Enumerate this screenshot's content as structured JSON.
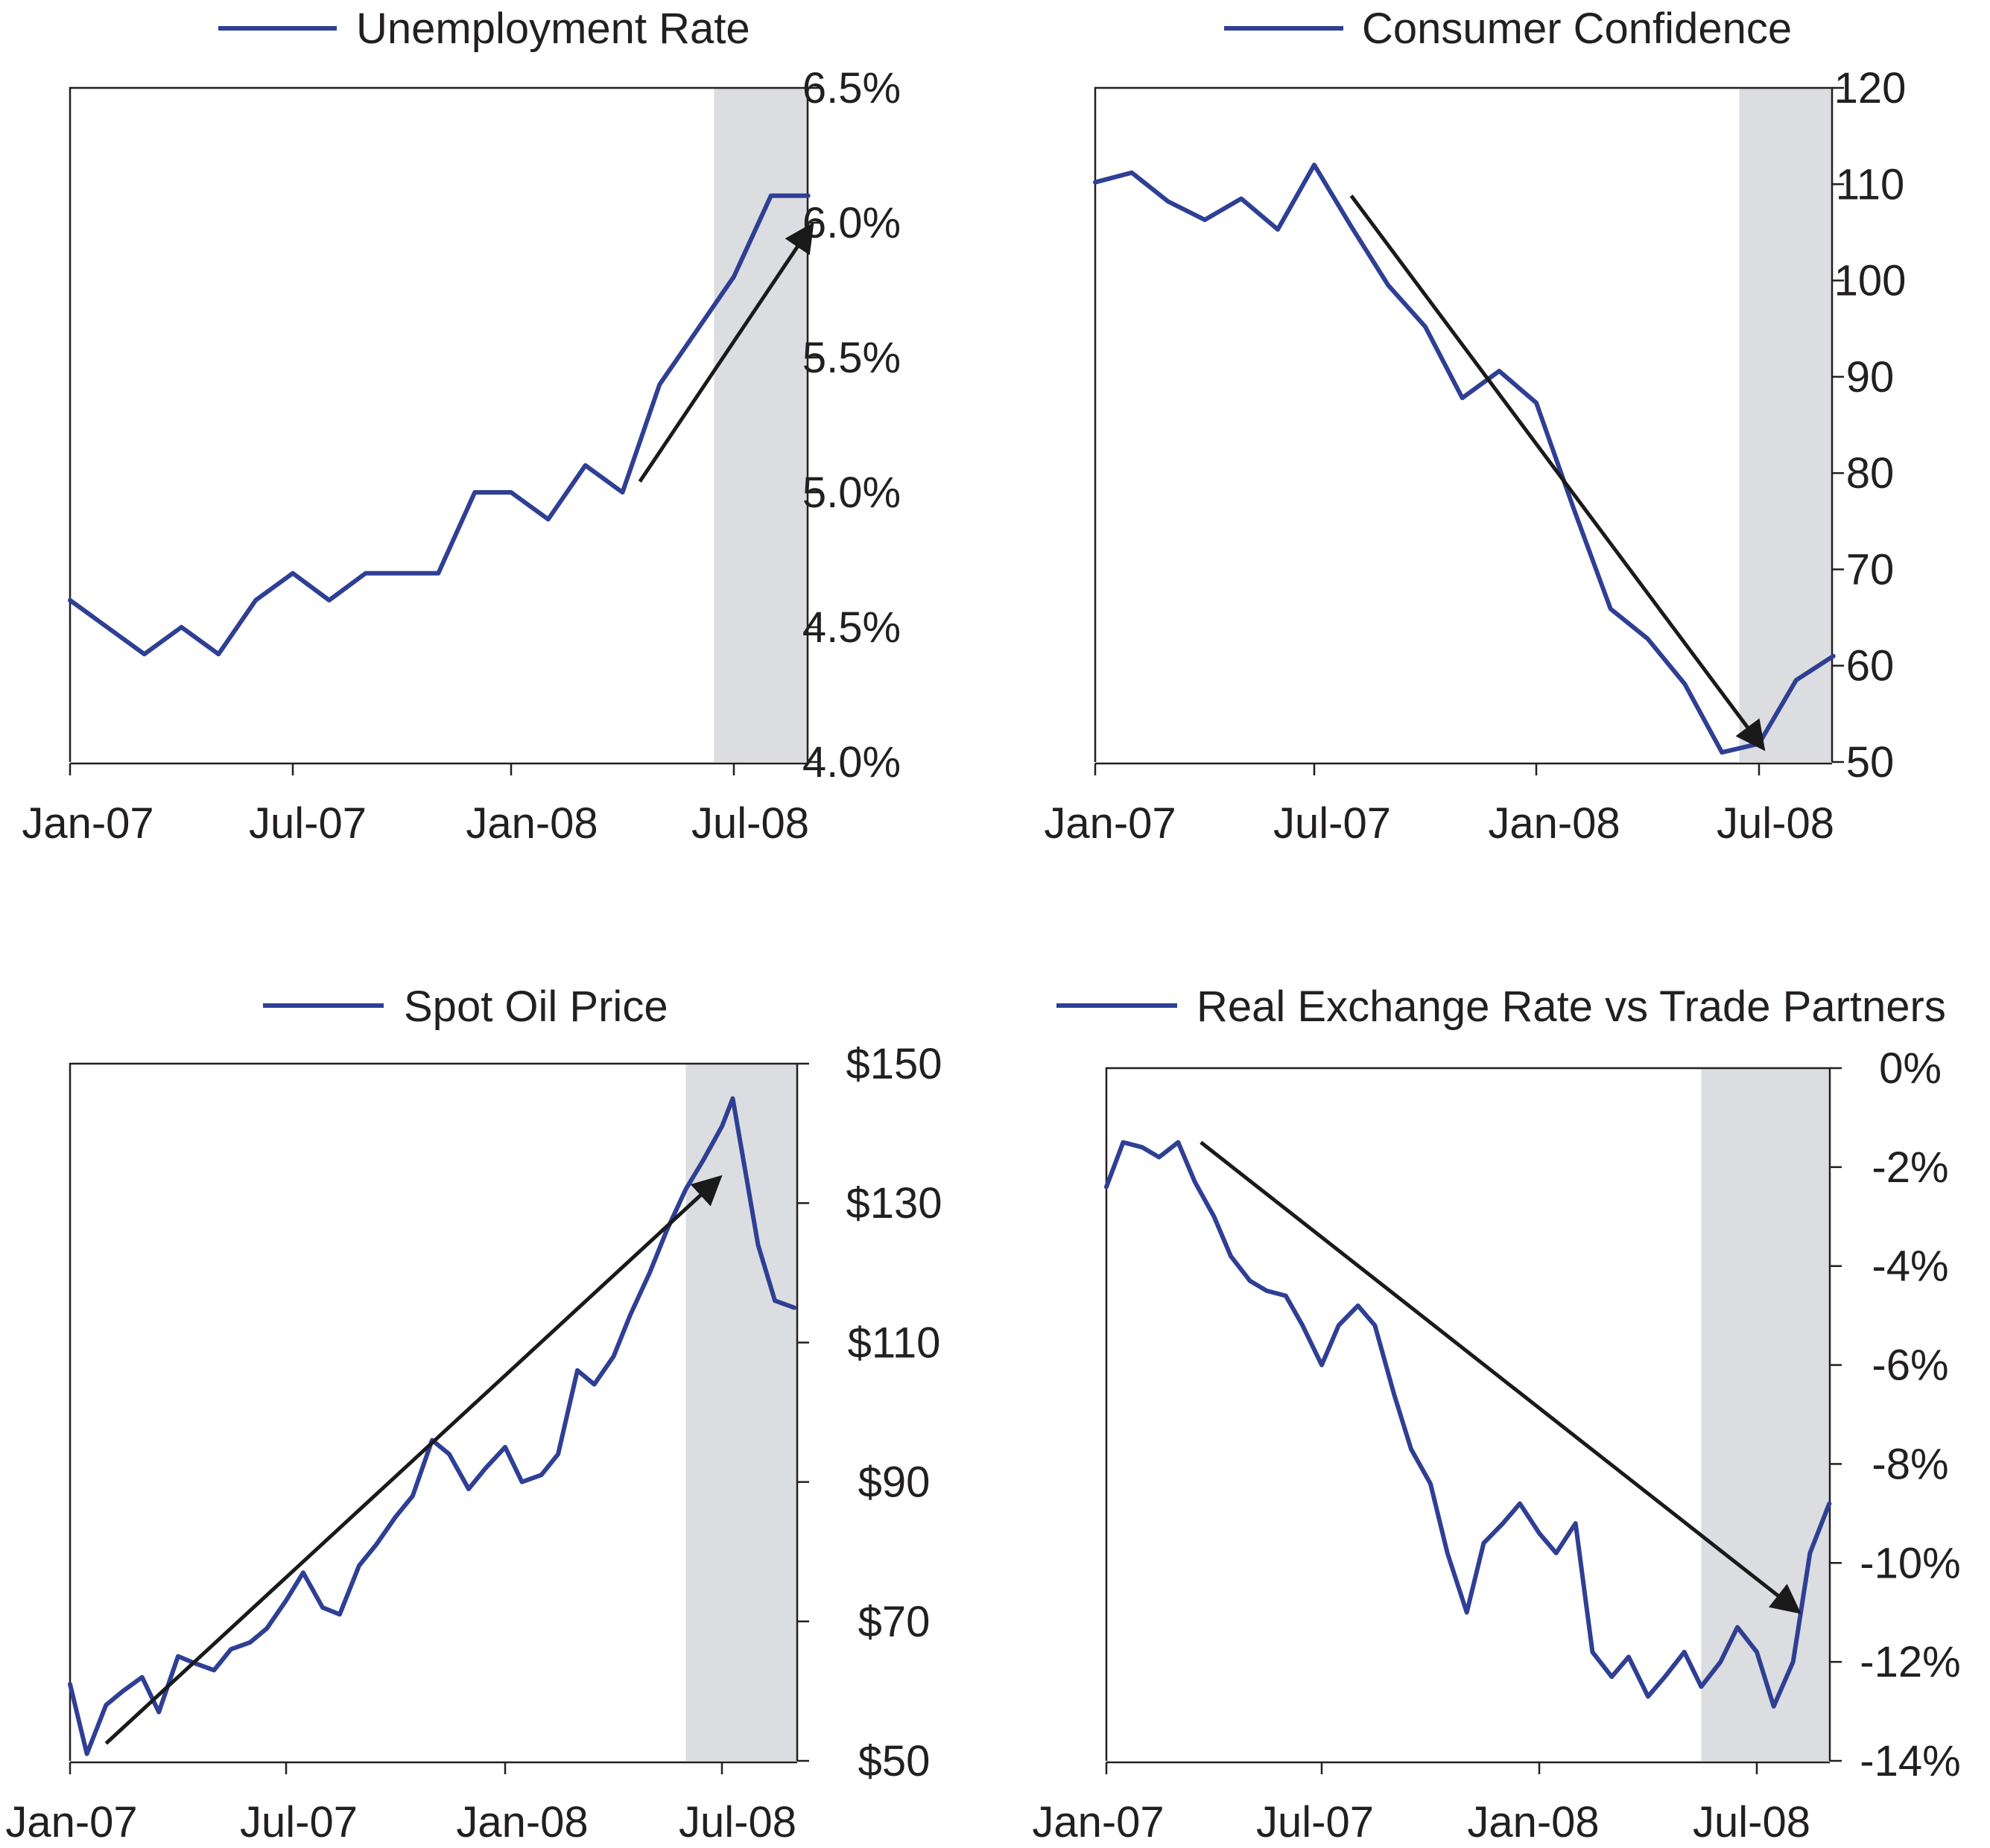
{
  "colors": {
    "series": "#2e3f94",
    "arrow": "#1a1a1a",
    "shade": "#dcdde0",
    "axis": "#231f20"
  },
  "chart_data": [
    {
      "type": "line",
      "series": [
        {
          "name": "Unemployment Rate",
          "x": [
            "2007-01",
            "2007-02",
            "2007-03",
            "2007-04",
            "2007-05",
            "2007-06",
            "2007-07",
            "2007-08",
            "2007-09",
            "2007-10",
            "2007-11",
            "2007-12",
            "2008-01",
            "2008-02",
            "2008-03",
            "2008-04",
            "2008-05",
            "2008-06",
            "2008-07",
            "2008-08",
            "2008-09"
          ],
          "values": [
            4.6,
            4.5,
            4.4,
            4.5,
            4.4,
            4.6,
            4.7,
            4.6,
            4.7,
            4.7,
            4.7,
            5.0,
            5.0,
            4.9,
            5.1,
            5.0,
            5.4,
            5.6,
            5.8,
            6.1,
            6.1
          ]
        }
      ],
      "x_ticks": [
        "Jan-07",
        "Jul-07",
        "Jan-08",
        "Jul-08"
      ],
      "y_ticks": [
        "4.0%",
        "4.5%",
        "5.0%",
        "5.5%",
        "6.0%",
        "6.5%"
      ],
      "ylim": [
        4.0,
        6.5
      ],
      "shaded_period": [
        "2008-06-15",
        "2008-09-01"
      ],
      "trend_arrow": {
        "from": [
          "2008-04-15",
          5.04
        ],
        "to": [
          "2008-09-01",
          5.97
        ]
      },
      "legend_position": "top-center",
      "grid": false
    },
    {
      "type": "line",
      "series": [
        {
          "name": "Consumer Confidence",
          "x": [
            "2007-01",
            "2007-02",
            "2007-03",
            "2007-04",
            "2007-05",
            "2007-06",
            "2007-07",
            "2007-08",
            "2007-09",
            "2007-10",
            "2007-11",
            "2007-12",
            "2008-01",
            "2008-02",
            "2008-03",
            "2008-04",
            "2008-05",
            "2008-06",
            "2008-07",
            "2008-08",
            "2008-09"
          ],
          "values": [
            110.2,
            111.2,
            108.2,
            106.3,
            108.5,
            105.3,
            112.0,
            105.6,
            99.5,
            95.2,
            87.8,
            90.6,
            87.3,
            76.4,
            65.9,
            62.8,
            58.1,
            51.0,
            51.9,
            58.5,
            61.0
          ]
        }
      ],
      "x_ticks": [
        "Jan-07",
        "Jul-07",
        "Jan-08",
        "Jul-08"
      ],
      "y_ticks": [
        "50",
        "60",
        "70",
        "80",
        "90",
        "100",
        "110",
        "120"
      ],
      "ylim": [
        50,
        120
      ],
      "shaded_period": [
        "2008-06-15",
        "2008-09-01"
      ],
      "trend_arrow": {
        "from": [
          "2007-08-01",
          108.8
        ],
        "to": [
          "2008-07-01",
          52.0
        ]
      },
      "legend_position": "top-center",
      "grid": false
    },
    {
      "type": "line",
      "series": [
        {
          "name": "Spot Oil Price",
          "x": [
            "2007-01-01",
            "2007-01-15",
            "2007-02-01",
            "2007-02-15",
            "2007-03-01",
            "2007-03-15",
            "2007-04-01",
            "2007-04-15",
            "2007-05-01",
            "2007-05-15",
            "2007-06-01",
            "2007-06-15",
            "2007-07-01",
            "2007-07-15",
            "2007-08-01",
            "2007-08-15",
            "2007-09-01",
            "2007-09-15",
            "2007-10-01",
            "2007-10-15",
            "2007-11-01",
            "2007-11-15",
            "2007-12-01",
            "2007-12-15",
            "2008-01-01",
            "2008-01-15",
            "2008-02-01",
            "2008-02-15",
            "2008-03-01",
            "2008-03-15",
            "2008-04-01",
            "2008-04-15",
            "2008-05-01",
            "2008-05-15",
            "2008-06-01",
            "2008-06-15",
            "2008-07-01",
            "2008-07-10",
            "2008-07-20",
            "2008-08-01",
            "2008-08-15",
            "2008-09-01"
          ],
          "values": [
            61,
            51,
            58,
            60,
            62,
            57,
            65,
            64,
            63,
            66,
            67,
            69,
            73,
            77,
            72,
            71,
            78,
            81,
            85,
            88,
            96,
            94,
            89,
            92,
            95,
            90,
            91,
            94,
            106,
            104,
            108,
            114,
            120,
            126,
            132,
            136,
            141,
            145,
            135,
            124,
            116,
            115
          ]
        }
      ],
      "x_ticks": [
        "Jan-07",
        "Jul-07",
        "Jan-08",
        "Jul-08"
      ],
      "y_ticks": [
        "$50",
        "$70",
        "$90",
        "$110",
        "$130",
        "$150"
      ],
      "ylim": [
        50,
        150
      ],
      "shaded_period": [
        "2008-06-01",
        "2008-09-01"
      ],
      "trend_arrow": {
        "from": [
          "2007-02-01",
          52.5
        ],
        "to": [
          "2008-06-25",
          133
        ]
      },
      "legend_position": "top-center",
      "grid": false
    },
    {
      "type": "line",
      "series": [
        {
          "name": "Real Exchange Rate vs Trade Partners",
          "x": [
            "2007-01-01",
            "2007-01-15",
            "2007-02-01",
            "2007-02-15",
            "2007-03-01",
            "2007-03-15",
            "2007-04-01",
            "2007-04-15",
            "2007-05-01",
            "2007-05-15",
            "2007-06-01",
            "2007-06-15",
            "2007-07-01",
            "2007-07-15",
            "2007-08-01",
            "2007-08-15",
            "2007-09-01",
            "2007-09-15",
            "2007-10-01",
            "2007-10-15",
            "2007-11-01",
            "2007-11-15",
            "2007-12-01",
            "2007-12-15",
            "2008-01-01",
            "2008-01-15",
            "2008-02-01",
            "2008-02-15",
            "2008-03-01",
            "2008-03-15",
            "2008-04-01",
            "2008-04-15",
            "2008-05-01",
            "2008-05-15",
            "2008-06-01",
            "2008-06-15",
            "2008-07-01",
            "2008-07-15",
            "2008-08-01",
            "2008-08-15",
            "2008-09-01"
          ],
          "values": [
            -2.4,
            -1.5,
            -1.6,
            -1.8,
            -1.5,
            -2.3,
            -3.0,
            -3.8,
            -4.3,
            -4.5,
            -4.6,
            -5.2,
            -6.0,
            -5.2,
            -4.8,
            -5.2,
            -6.6,
            -7.7,
            -8.4,
            -9.8,
            -11.0,
            -9.6,
            -9.2,
            -8.8,
            -9.4,
            -9.8,
            -9.2,
            -11.8,
            -12.3,
            -11.9,
            -12.7,
            -12.3,
            -11.8,
            -12.5,
            -12.0,
            -11.3,
            -11.8,
            -12.9,
            -12.0,
            -9.8,
            -8.8
          ]
        }
      ],
      "x_ticks": [
        "Jan-07",
        "Jul-07",
        "Jan-08",
        "Jul-08"
      ],
      "y_ticks": [
        "-14%",
        "-12%",
        "-10%",
        "-8%",
        "-6%",
        "-4%",
        "-2%",
        "0%"
      ],
      "ylim": [
        -14,
        0
      ],
      "shaded_period": [
        "2008-05-15",
        "2008-09-01"
      ],
      "trend_arrow": {
        "from": [
          "2007-03-20",
          -1.5
        ],
        "to": [
          "2008-08-01",
          -10.9
        ]
      },
      "legend_position": "top-center",
      "grid": false
    }
  ]
}
